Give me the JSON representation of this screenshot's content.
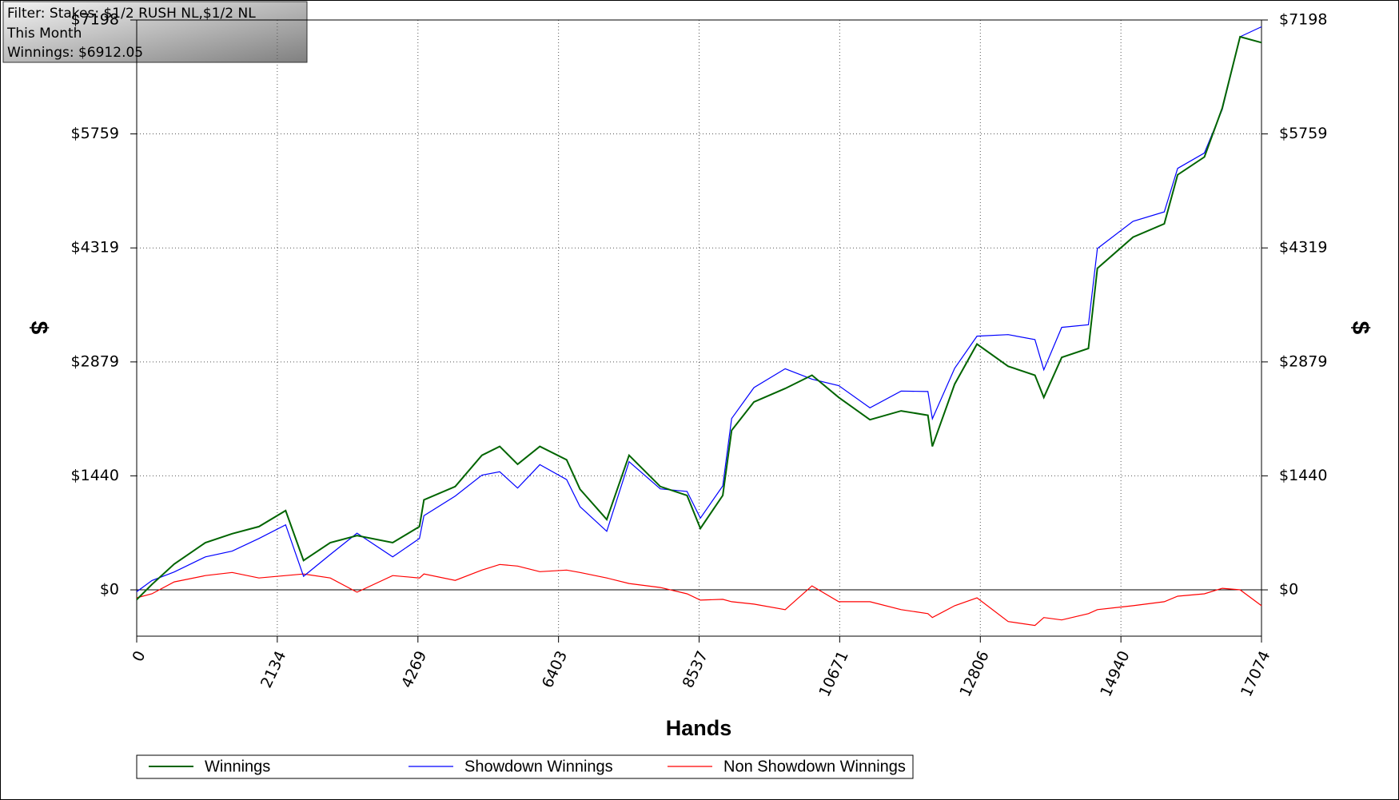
{
  "chart_data": {
    "type": "line",
    "annotations": [
      "Filter: Stakes: $1/2 RUSH NL,$1/2 NL",
      "This Month",
      "Winnings: $6912.05"
    ],
    "xlabel": "Hands",
    "ylabel": "$",
    "x": [
      0,
      230,
      569,
      1043,
      1449,
      1855,
      2261,
      2532,
      2938,
      3344,
      3886,
      4292,
      4360,
      4834,
      5240,
      5511,
      5782,
      6120,
      6526,
      6729,
      7135,
      7474,
      7948,
      8354,
      8557,
      8896,
      9031,
      9370,
      9844,
      10250,
      10657,
      11130,
      11604,
      12010,
      12078,
      12416,
      12755,
      13229,
      13635,
      13770,
      14041,
      14447,
      14583,
      15124,
      15598,
      15801,
      16207,
      16478,
      16749,
      17074
    ],
    "series": [
      {
        "name": "Winnings",
        "color": "#006400",
        "values": [
          -124,
          68,
          326,
          596,
          709,
          799,
          1001,
          371,
          596,
          686,
          596,
          799,
          1136,
          1305,
          1699,
          1811,
          1586,
          1811,
          1643,
          1271,
          889,
          1699,
          1305,
          1193,
          776,
          1193,
          2014,
          2374,
          2543,
          2711,
          2430,
          2149,
          2261,
          2205,
          1811,
          2599,
          3105,
          2824,
          2711,
          2430,
          2936,
          3049,
          4061,
          4455,
          4624,
          5243,
          5468,
          6086,
          6986,
          6912
        ]
      },
      {
        "name": "Showdown Winnings",
        "color": "#0000ff",
        "values": [
          -24,
          118,
          226,
          416,
          489,
          649,
          821,
          171,
          446,
          716,
          416,
          649,
          936,
          1185,
          1449,
          1491,
          1286,
          1581,
          1393,
          1051,
          739,
          1619,
          1275,
          1243,
          906,
          1313,
          2164,
          2554,
          2793,
          2661,
          2580,
          2299,
          2511,
          2505,
          2161,
          2799,
          3205,
          3224,
          3161,
          2780,
          3316,
          3349,
          4311,
          4655,
          4774,
          5323,
          5518,
          6066,
          6986,
          7112
        ]
      },
      {
        "name": "Non Showdown Winnings",
        "color": "#ff0000",
        "values": [
          -100,
          -50,
          100,
          180,
          220,
          150,
          180,
          200,
          150,
          -30,
          180,
          150,
          200,
          120,
          250,
          320,
          300,
          230,
          250,
          220,
          150,
          80,
          30,
          -50,
          -130,
          -120,
          -150,
          -180,
          -250,
          50,
          -150,
          -150,
          -250,
          -300,
          -350,
          -200,
          -100,
          -400,
          -450,
          -350,
          -380,
          -300,
          -250,
          -200,
          -150,
          -80,
          -50,
          20,
          0,
          -200
        ]
      }
    ],
    "xlim": [
      0,
      17074
    ],
    "xticks": [
      0,
      2134,
      4269,
      6403,
      8537,
      10671,
      12806,
      14940,
      17074
    ],
    "ylim": [
      -585,
      7198
    ],
    "yticks": [
      {
        "value": 0,
        "label": "$0"
      },
      {
        "value": 1440,
        "label": "$1440"
      },
      {
        "value": 2879,
        "label": "$2879"
      },
      {
        "value": 4319,
        "label": "$4319"
      },
      {
        "value": 5759,
        "label": "$5759"
      },
      {
        "value": 7198,
        "label": "$7198"
      }
    ],
    "grid": true
  }
}
